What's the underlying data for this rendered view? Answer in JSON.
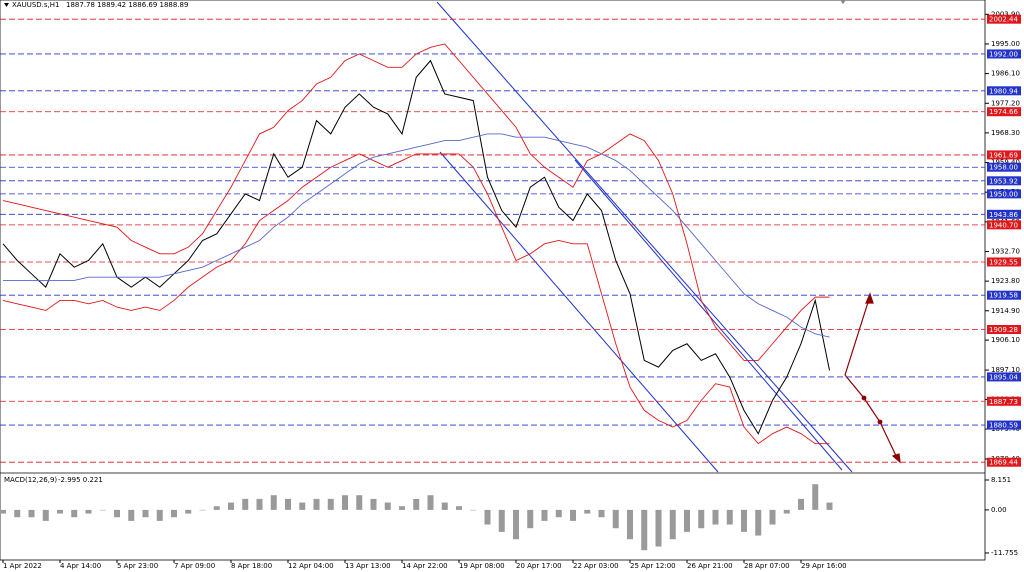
{
  "chart_data": [
    {
      "type": "line",
      "title": "XAUUSD.s,H1",
      "subtitle": "1887.78 1889.42 1886.69 1888.89",
      "categories": [
        "1 Apr 2022",
        null,
        null,
        null,
        "4 Apr 14:00",
        null,
        null,
        null,
        "5 Apr 23:00",
        null,
        null,
        null,
        "7 Apr 09:00",
        null,
        null,
        null,
        "8 Apr 18:00",
        null,
        null,
        null,
        "12 Apr 04:00",
        null,
        null,
        null,
        "13 Apr 13:00",
        null,
        null,
        null,
        "14 Apr 22:00",
        null,
        null,
        null,
        "19 Apr 08:00",
        null,
        null,
        null,
        "20 Apr 17:00",
        null,
        null,
        null,
        "22 Apr 03:00",
        null,
        null,
        null,
        "25 Apr 12:00",
        null,
        null,
        null,
        "26 Apr 21:00",
        null,
        null,
        null,
        "28 Apr 07:00",
        null,
        null,
        null,
        "29 Apr 16:00",
        null,
        null
      ],
      "series": [
        {
          "color": "#000000",
          "values": [
            1935,
            1930,
            1926,
            1922,
            1932,
            1928,
            1930,
            1935,
            1925,
            1922,
            1925,
            1922,
            1926,
            1930,
            1936,
            1938,
            1944,
            1950,
            1948,
            1962,
            1955,
            1958,
            1972,
            1968,
            1976,
            1980,
            1976,
            1974,
            1968,
            1985,
            1990,
            1980,
            1979,
            1978,
            1955,
            1945,
            1940,
            1952,
            1955,
            1946,
            1942,
            1950,
            1945,
            1930,
            1920,
            1900,
            1898,
            1903,
            1905,
            1900,
            1902,
            1895,
            1885,
            1878,
            1888,
            1895,
            1905,
            1918,
            1897
          ]
        },
        {
          "color": "#e0161a",
          "values": [
            1948,
            1947,
            1946,
            1945,
            1944,
            1943,
            1942,
            1941,
            1940,
            1936,
            1934,
            1932,
            1932,
            1934,
            1938,
            1945,
            1952,
            1960,
            1968,
            1970,
            1975,
            1978,
            1983,
            1985,
            1990,
            1992,
            1990,
            1988,
            1988,
            1992,
            1994,
            1995,
            1990,
            1985,
            1980,
            1975,
            1970,
            1962,
            1958,
            1955,
            1952,
            1960,
            1962,
            1965,
            1968,
            1966,
            1960,
            1950,
            1935,
            1918,
            1910,
            1905,
            1900,
            1900,
            1905,
            1910,
            1915,
            1919,
            1919
          ]
        },
        {
          "color": "#e0161a",
          "values": [
            1918,
            1917,
            1916,
            1915,
            1918,
            1918,
            1917,
            1918,
            1916,
            1915,
            1916,
            1915,
            1918,
            1922,
            1925,
            1928,
            1930,
            1935,
            1942,
            1945,
            1948,
            1952,
            1955,
            1958,
            1960,
            1962,
            1960,
            1958,
            1960,
            1962,
            1962,
            1962,
            1962,
            1958,
            1950,
            1940,
            1930,
            1932,
            1935,
            1936,
            1935,
            1935,
            1920,
            1905,
            1892,
            1885,
            1882,
            1880,
            1882,
            1888,
            1893,
            1892,
            1880,
            1875,
            1878,
            1880,
            1878,
            1875,
            1875
          ]
        },
        {
          "color": "#5566cc",
          "values": [
            1924,
            1924,
            1924,
            1924,
            1924,
            1924,
            1925,
            1925,
            1925,
            1925,
            1925,
            1925,
            1926,
            1927,
            1928,
            1930,
            1932,
            1934,
            1936,
            1940,
            1943,
            1947,
            1950,
            1953,
            1956,
            1959,
            1961,
            1962,
            1963,
            1964,
            1965,
            1966,
            1966,
            1967,
            1968,
            1968,
            1967,
            1967,
            1967,
            1966,
            1965,
            1964,
            1962,
            1960,
            1957,
            1953,
            1949,
            1945,
            1940,
            1935,
            1930,
            1925,
            1920,
            1917,
            1915,
            1913,
            1910,
            1908,
            1907
          ]
        }
      ],
      "ylim": [
        1866.5,
        2008.2
      ],
      "yticks": [
        {
          "value": 2003.9,
          "label": "2003.90"
        },
        {
          "value": 1995,
          "label": "1995.00"
        },
        {
          "value": 1986.1,
          "label": "1986.10"
        },
        {
          "value": 1977.2,
          "label": "1977.20"
        },
        {
          "value": 1968.3,
          "label": "1968.30"
        },
        {
          "value": 1959.4,
          "label": "1959.40"
        },
        {
          "value": 1950.5,
          "label": "1950.50"
        },
        {
          "value": 1941.6,
          "label": "1941.60"
        },
        {
          "value": 1932.7,
          "label": "1932.70"
        },
        {
          "value": 1923.8,
          "label": "1923.80"
        },
        {
          "value": 1914.9,
          "label": "1914.90"
        },
        {
          "value": 1906.1,
          "label": "1906.10"
        },
        {
          "value": 1897.1,
          "label": "1897.10"
        },
        {
          "value": 1888.3,
          "label": "1888.30"
        },
        {
          "value": 1879.4,
          "label": "1879.40"
        },
        {
          "value": 1870.4,
          "label": "1870.40"
        }
      ],
      "levels": [
        {
          "value": 2002.44,
          "color": "#e0161a"
        },
        {
          "value": 1992,
          "label": "1992.00",
          "color": "#2233cc"
        },
        {
          "value": 1980.94,
          "color": "#2233cc"
        },
        {
          "value": 1974.66,
          "color": "#e0161a"
        },
        {
          "value": 1961.69,
          "color": "#e0161a"
        },
        {
          "value": 1958,
          "label": "1958.00",
          "color": "#2233cc"
        },
        {
          "value": 1953.92,
          "color": "#2233cc"
        },
        {
          "value": 1950,
          "label": "1950.00",
          "color": "#2233cc"
        },
        {
          "value": 1943.86,
          "color": "#2233cc"
        },
        {
          "value": 1940.7,
          "label": "1940.70",
          "color": "#e0161a"
        },
        {
          "value": 1929.55,
          "color": "#e0161a"
        },
        {
          "value": 1919.58,
          "color": "#2233cc"
        },
        {
          "value": 1909.28,
          "color": "#e0161a"
        },
        {
          "value": 1895.04,
          "color": "#2233cc"
        },
        {
          "value": 1887.73,
          "color": "#e0161a"
        },
        {
          "value": 1880.59,
          "color": "#2233cc"
        },
        {
          "value": 1869.44,
          "color": "#e0161a"
        }
      ]
    },
    {
      "type": "bar",
      "title": "MACD(12,26,9)",
      "subtitle": "-2.995 0.221",
      "color": "#9a9a9a",
      "values": [
        -1,
        -2,
        -2,
        -3,
        -1,
        -2,
        -1,
        0,
        -2,
        -3,
        -2,
        -3,
        -2,
        -1,
        0,
        1,
        2,
        3,
        3,
        4,
        3,
        2,
        3,
        3,
        4,
        4,
        3,
        2,
        1,
        3,
        4,
        2,
        1,
        0,
        -4,
        -6,
        -8,
        -5,
        -3,
        -2,
        -3,
        -1,
        -2,
        -5,
        -8,
        -11,
        -10,
        -8,
        -6,
        -5,
        -4,
        -4,
        -6,
        -7,
        -4,
        -1,
        3,
        7,
        2
      ],
      "ylim": [
        -13.67,
        9.79
      ],
      "yticks": [
        8.151,
        {
          "value": 0,
          "label": "0.00"
        },
        -11.755
      ]
    }
  ]
}
